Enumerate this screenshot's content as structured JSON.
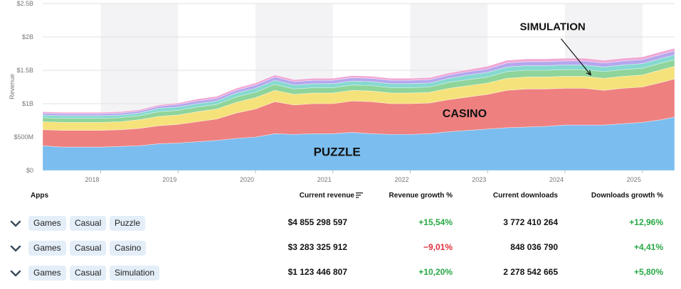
{
  "chart_data": {
    "type": "area",
    "stacked": true,
    "ylabel": "Revenue",
    "y_ticks": [
      "$0",
      "$500M",
      "$1B",
      "$1.5B",
      "$2B",
      "$2.5B"
    ],
    "y_tick_values": [
      0,
      0.5,
      1,
      1.5,
      2,
      2.5
    ],
    "ylim": [
      0,
      2.5
    ],
    "x_ticks": [
      "2018",
      "2019",
      "2020",
      "2021",
      "2022",
      "2023",
      "2024",
      "2025"
    ],
    "xlim": [
      "2017-04",
      "2025-06"
    ],
    "grid": true,
    "colors": {
      "Puzzle": "#7bbdee",
      "Casino": "#ee8080",
      "Simulation": "#f5e27a",
      "layer4": "#8fd49a",
      "layer5": "#86d9d0",
      "layer6": "#b4a7ee",
      "layer7": "#f0a6d4"
    },
    "x": [
      "2017-04",
      "2017-07",
      "2017-10",
      "2018-01",
      "2018-04",
      "2018-07",
      "2018-10",
      "2019-01",
      "2019-04",
      "2019-07",
      "2019-10",
      "2020-01",
      "2020-04",
      "2020-07",
      "2020-10",
      "2021-01",
      "2021-04",
      "2021-07",
      "2021-10",
      "2022-01",
      "2022-04",
      "2022-07",
      "2022-10",
      "2023-01",
      "2023-04",
      "2023-07",
      "2023-10",
      "2024-01",
      "2024-04",
      "2024-07",
      "2024-10",
      "2025-01",
      "2025-04",
      "2025-06"
    ],
    "series": [
      {
        "name": "Puzzle",
        "values": [
          0.37,
          0.35,
          0.35,
          0.35,
          0.36,
          0.37,
          0.4,
          0.41,
          0.43,
          0.45,
          0.48,
          0.5,
          0.55,
          0.54,
          0.55,
          0.55,
          0.57,
          0.55,
          0.54,
          0.54,
          0.55,
          0.58,
          0.6,
          0.62,
          0.64,
          0.65,
          0.66,
          0.68,
          0.68,
          0.68,
          0.7,
          0.72,
          0.76,
          0.8
        ]
      },
      {
        "name": "Casino",
        "values": [
          0.24,
          0.25,
          0.25,
          0.25,
          0.25,
          0.26,
          0.27,
          0.28,
          0.3,
          0.32,
          0.38,
          0.42,
          0.48,
          0.44,
          0.45,
          0.45,
          0.47,
          0.48,
          0.46,
          0.46,
          0.46,
          0.48,
          0.5,
          0.52,
          0.56,
          0.57,
          0.56,
          0.55,
          0.55,
          0.52,
          0.53,
          0.53,
          0.56,
          0.57
        ]
      },
      {
        "name": "Simulation",
        "values": [
          0.12,
          0.12,
          0.12,
          0.12,
          0.12,
          0.13,
          0.14,
          0.14,
          0.15,
          0.15,
          0.16,
          0.17,
          0.17,
          0.16,
          0.16,
          0.16,
          0.16,
          0.16,
          0.16,
          0.16,
          0.16,
          0.17,
          0.17,
          0.17,
          0.18,
          0.18,
          0.18,
          0.18,
          0.18,
          0.18,
          0.18,
          0.18,
          0.19,
          0.19
        ]
      },
      {
        "name": "",
        "values": [
          0.06,
          0.06,
          0.06,
          0.06,
          0.06,
          0.06,
          0.07,
          0.07,
          0.07,
          0.07,
          0.08,
          0.08,
          0.09,
          0.08,
          0.08,
          0.08,
          0.08,
          0.08,
          0.08,
          0.08,
          0.08,
          0.09,
          0.09,
          0.09,
          0.1,
          0.1,
          0.1,
          0.1,
          0.1,
          0.1,
          0.1,
          0.1,
          0.1,
          0.1
        ]
      },
      {
        "name": "",
        "values": [
          0.04,
          0.04,
          0.04,
          0.04,
          0.04,
          0.04,
          0.05,
          0.05,
          0.05,
          0.05,
          0.06,
          0.06,
          0.06,
          0.06,
          0.06,
          0.06,
          0.06,
          0.06,
          0.06,
          0.06,
          0.06,
          0.06,
          0.07,
          0.07,
          0.07,
          0.07,
          0.07,
          0.07,
          0.07,
          0.07,
          0.07,
          0.07,
          0.07,
          0.07
        ]
      },
      {
        "name": "",
        "values": [
          0.03,
          0.03,
          0.03,
          0.03,
          0.03,
          0.03,
          0.03,
          0.04,
          0.04,
          0.04,
          0.04,
          0.05,
          0.05,
          0.05,
          0.05,
          0.05,
          0.05,
          0.05,
          0.05,
          0.05,
          0.05,
          0.05,
          0.05,
          0.05,
          0.06,
          0.06,
          0.06,
          0.06,
          0.06,
          0.06,
          0.06,
          0.06,
          0.06,
          0.06
        ]
      },
      {
        "name": "",
        "values": [
          0.02,
          0.02,
          0.02,
          0.02,
          0.02,
          0.02,
          0.02,
          0.02,
          0.03,
          0.03,
          0.03,
          0.03,
          0.03,
          0.03,
          0.03,
          0.03,
          0.03,
          0.03,
          0.03,
          0.03,
          0.03,
          0.03,
          0.03,
          0.04,
          0.04,
          0.04,
          0.04,
          0.04,
          0.04,
          0.04,
          0.04,
          0.04,
          0.04,
          0.04
        ]
      }
    ],
    "annotations": [
      {
        "text": "PUZZLE",
        "x": "2020-10",
        "y": 0.22
      },
      {
        "text": "CASINO",
        "x": "2022-06",
        "y": 0.8
      },
      {
        "text": "SIMULATION",
        "x": "2023-06",
        "y": 2.1,
        "arrow_to": {
          "x": "2024-05",
          "y": 1.43
        }
      }
    ]
  },
  "table": {
    "headers": {
      "apps": "Apps",
      "current_revenue": "Current revenue",
      "revenue_growth": "Revenue growth %",
      "current_downloads": "Current downloads",
      "downloads_growth": "Downloads growth %"
    },
    "sort_icon": "sort-desc-icon",
    "expand_icon": "chevron-down-icon",
    "rows": [
      {
        "tags": [
          "Games",
          "Casual",
          "Puzzle"
        ],
        "revenue": "$4 855 298 597",
        "revenue_growth": "+15,54%",
        "revenue_growth_positive": true,
        "downloads": "3 772 410 264",
        "downloads_growth": "+12,96%",
        "downloads_growth_positive": true
      },
      {
        "tags": [
          "Games",
          "Casual",
          "Casino"
        ],
        "revenue": "$3 283 325 912",
        "revenue_growth": "−9,01%",
        "revenue_growth_positive": false,
        "downloads": "848 036 790",
        "downloads_growth": "+4,41%",
        "downloads_growth_positive": true
      },
      {
        "tags": [
          "Games",
          "Casual",
          "Simulation"
        ],
        "revenue": "$1 123 446 807",
        "revenue_growth": "+10,20%",
        "revenue_growth_positive": true,
        "downloads": "2 278 542 665",
        "downloads_growth": "+5,80%",
        "downloads_growth_positive": true
      }
    ]
  }
}
